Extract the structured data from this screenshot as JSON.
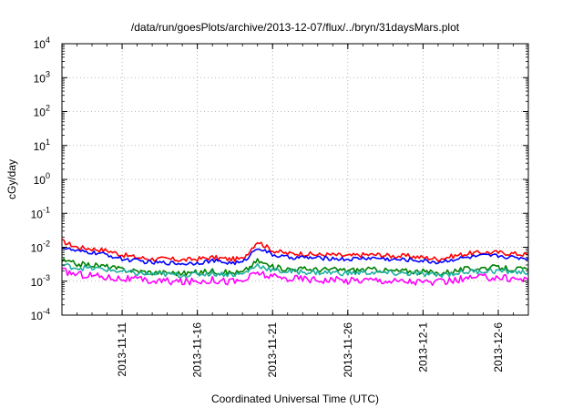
{
  "chart_data": {
    "type": "line",
    "title": "/data/run/goesPlots/archive/2013-12-07/flux/../bryn/31daysMars.plot",
    "xlabel": "Coordinated Universal Time (UTC)",
    "ylabel": "cGy/day",
    "xlim": [
      "2013-11-07",
      "2013-12-08"
    ],
    "ylim": [
      0.0001,
      10000
    ],
    "yscale": "log",
    "grid": true,
    "x_ticks": [
      "2013-11-11",
      "2013-11-16",
      "2013-11-21",
      "2013-11-26",
      "2013-12-1",
      "2013-12-6"
    ],
    "y_ticks": [
      {
        "value": 0.0001,
        "base": "10",
        "exp": "-4"
      },
      {
        "value": 0.001,
        "base": "10",
        "exp": "-3"
      },
      {
        "value": 0.01,
        "base": "10",
        "exp": "-2"
      },
      {
        "value": 0.1,
        "base": "10",
        "exp": "-1"
      },
      {
        "value": 1,
        "base": "10",
        "exp": "0"
      },
      {
        "value": 10,
        "base": "10",
        "exp": "1"
      },
      {
        "value": 100,
        "base": "10",
        "exp": "2"
      },
      {
        "value": 1000,
        "base": "10",
        "exp": "3"
      },
      {
        "value": 10000,
        "base": "10",
        "exp": "4"
      }
    ],
    "x": [
      "2013-11-07",
      "2013-11-08",
      "2013-11-09",
      "2013-11-10",
      "2013-11-11",
      "2013-11-12",
      "2013-11-13",
      "2013-11-14",
      "2013-11-15",
      "2013-11-16",
      "2013-11-17",
      "2013-11-18",
      "2013-11-19",
      "2013-11-20",
      "2013-11-21",
      "2013-11-22",
      "2013-11-23",
      "2013-11-24",
      "2013-11-25",
      "2013-11-26",
      "2013-11-27",
      "2013-11-28",
      "2013-11-29",
      "2013-11-30",
      "2013-12-01",
      "2013-12-02",
      "2013-12-03",
      "2013-12-04",
      "2013-12-05",
      "2013-12-06",
      "2013-12-07",
      "2013-12-08"
    ],
    "series": [
      {
        "color": "#ff0000",
        "values": [
          0.015,
          0.01,
          0.009,
          0.008,
          0.006,
          0.005,
          0.0045,
          0.0045,
          0.0042,
          0.0045,
          0.005,
          0.0045,
          0.0045,
          0.015,
          0.008,
          0.0065,
          0.0065,
          0.006,
          0.006,
          0.0055,
          0.006,
          0.006,
          0.0055,
          0.0055,
          0.005,
          0.0045,
          0.0055,
          0.0065,
          0.007,
          0.007,
          0.0065,
          0.006
        ]
      },
      {
        "color": "#0000ff",
        "values": [
          0.01,
          0.0075,
          0.007,
          0.006,
          0.0045,
          0.004,
          0.0035,
          0.0035,
          0.0033,
          0.0035,
          0.004,
          0.0035,
          0.0035,
          0.01,
          0.006,
          0.005,
          0.005,
          0.0048,
          0.0047,
          0.0044,
          0.0048,
          0.0048,
          0.0043,
          0.0043,
          0.004,
          0.0036,
          0.0044,
          0.005,
          0.0056,
          0.0056,
          0.005,
          0.0048
        ]
      },
      {
        "color": "#008000",
        "values": [
          0.004,
          0.0032,
          0.003,
          0.0027,
          0.0022,
          0.002,
          0.0018,
          0.0018,
          0.0017,
          0.0018,
          0.002,
          0.0018,
          0.0018,
          0.004,
          0.0026,
          0.0023,
          0.0023,
          0.0022,
          0.0022,
          0.0021,
          0.0022,
          0.0022,
          0.002,
          0.002,
          0.0019,
          0.0017,
          0.002,
          0.0023,
          0.0025,
          0.0025,
          0.0023,
          0.0022
        ]
      },
      {
        "color": "#20b0a0",
        "values": [
          0.003,
          0.0025,
          0.0024,
          0.0022,
          0.0019,
          0.0017,
          0.0016,
          0.0016,
          0.0015,
          0.0016,
          0.0017,
          0.0016,
          0.0016,
          0.003,
          0.0021,
          0.0019,
          0.0019,
          0.0018,
          0.0018,
          0.0017,
          0.0018,
          0.0018,
          0.0017,
          0.0017,
          0.0016,
          0.0015,
          0.0017,
          0.0019,
          0.002,
          0.002,
          0.0019,
          0.0018
        ]
      },
      {
        "color": "#ff00ff",
        "values": [
          0.002,
          0.0016,
          0.0015,
          0.0013,
          0.0012,
          0.0011,
          0.001,
          0.001,
          0.00095,
          0.001,
          0.0011,
          0.001,
          0.001,
          0.0018,
          0.0013,
          0.0012,
          0.0012,
          0.0011,
          0.0011,
          0.00105,
          0.0011,
          0.0011,
          0.001,
          0.001,
          0.00095,
          0.0009,
          0.00105,
          0.0012,
          0.0013,
          0.0013,
          0.0012,
          0.0011
        ]
      }
    ]
  }
}
